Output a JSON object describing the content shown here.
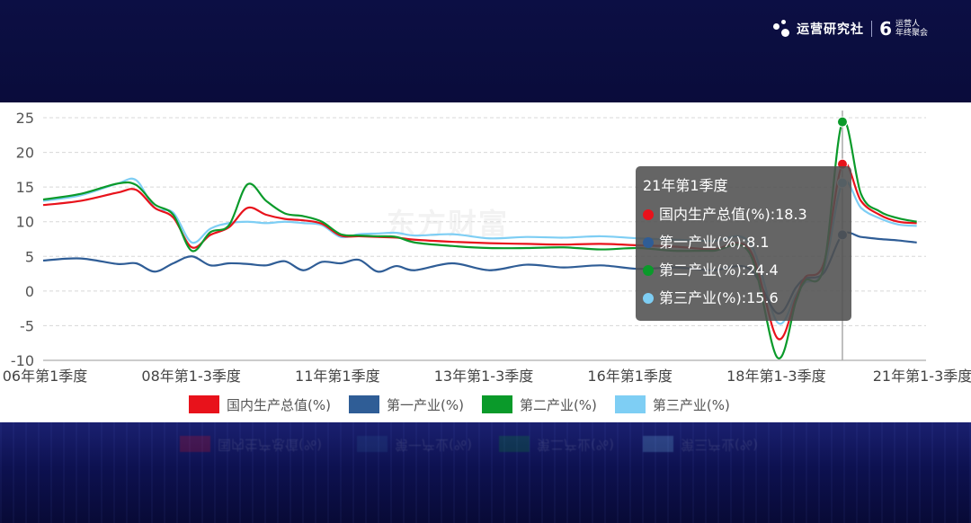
{
  "brand": {
    "name": "运营研究社",
    "six": "6",
    "sub_line1": "运营人",
    "sub_line2": "年终聚会"
  },
  "watermark": "东方财富",
  "chart_data": {
    "type": "line",
    "xlabels": [
      "06年第1季度",
      "08年第1-3季度",
      "11年第1季度",
      "13年第1-3季度",
      "16年第1季度",
      "18年第1-3季度",
      "21年第1-3季度"
    ],
    "yticks": [
      -10,
      -5,
      0,
      5,
      10,
      15,
      20,
      25
    ],
    "ylim": [
      -10,
      25
    ],
    "grid": true,
    "legend_position": "bottom",
    "x_index": [
      0,
      4,
      8,
      10,
      12,
      14,
      16,
      18,
      20,
      22,
      24,
      26,
      28,
      30,
      32,
      34,
      36,
      38,
      40,
      44,
      48,
      52,
      56,
      60,
      64,
      68,
      72,
      76,
      79,
      81,
      82,
      84,
      86,
      88,
      90,
      92,
      94
    ],
    "series": [
      {
        "name": "国内生产总值(%)",
        "color": "#e8121b",
        "values": [
          12.4,
          13.0,
          14.2,
          14.6,
          12.0,
          10.6,
          6.3,
          8.1,
          9.2,
          12.0,
          11.0,
          10.4,
          10.2,
          9.7,
          8.0,
          7.9,
          7.8,
          7.7,
          7.4,
          7.1,
          6.9,
          6.8,
          6.7,
          6.8,
          6.6,
          6.4,
          6.0,
          6.0,
          -6.8,
          -1.0,
          2.0,
          4.0,
          18.3,
          13.0,
          11.0,
          10.0,
          9.8
        ]
      },
      {
        "name": "第一产业(%)",
        "color": "#2f5d96",
        "values": [
          4.4,
          4.7,
          3.9,
          4.0,
          2.8,
          4.0,
          5.0,
          3.7,
          4.0,
          3.9,
          3.7,
          4.3,
          3.0,
          4.2,
          4.0,
          4.5,
          2.8,
          3.6,
          3.0,
          4.0,
          3.0,
          3.8,
          3.4,
          3.7,
          3.2,
          3.4,
          3.0,
          3.2,
          -3.2,
          0.5,
          1.8,
          2.6,
          8.1,
          7.8,
          7.5,
          7.3,
          7.0
        ]
      },
      {
        "name": "第二产业(%)",
        "color": "#0a9a2a",
        "values": [
          13.2,
          14.0,
          15.5,
          15.3,
          12.5,
          11.0,
          5.8,
          8.5,
          9.5,
          15.4,
          13.0,
          11.2,
          10.8,
          10.0,
          8.2,
          8.0,
          7.9,
          7.8,
          7.0,
          6.5,
          6.2,
          6.2,
          6.3,
          6.0,
          6.2,
          5.8,
          5.8,
          5.5,
          -9.6,
          -1.5,
          1.5,
          3.5,
          24.4,
          14.0,
          11.5,
          10.5,
          10.0
        ]
      },
      {
        "name": "第三产业(%)",
        "color": "#7ecef4",
        "values": [
          13.0,
          13.8,
          15.5,
          16.0,
          12.0,
          11.3,
          7.0,
          9.0,
          9.8,
          10.0,
          9.8,
          10.0,
          9.8,
          9.5,
          7.8,
          8.2,
          8.3,
          8.4,
          8.0,
          8.2,
          7.6,
          7.8,
          7.7,
          7.9,
          7.6,
          7.4,
          7.2,
          7.0,
          -4.5,
          -0.5,
          1.2,
          3.0,
          15.6,
          12.0,
          10.5,
          9.6,
          9.4
        ]
      }
    ],
    "tooltip": {
      "title": "21年第1季度",
      "rows": [
        "国内生产总值(%):18.3",
        "第一产业(%):8.1",
        "第二产业(%):24.4",
        "第三产业(%):15.6"
      ],
      "index": 86
    }
  }
}
